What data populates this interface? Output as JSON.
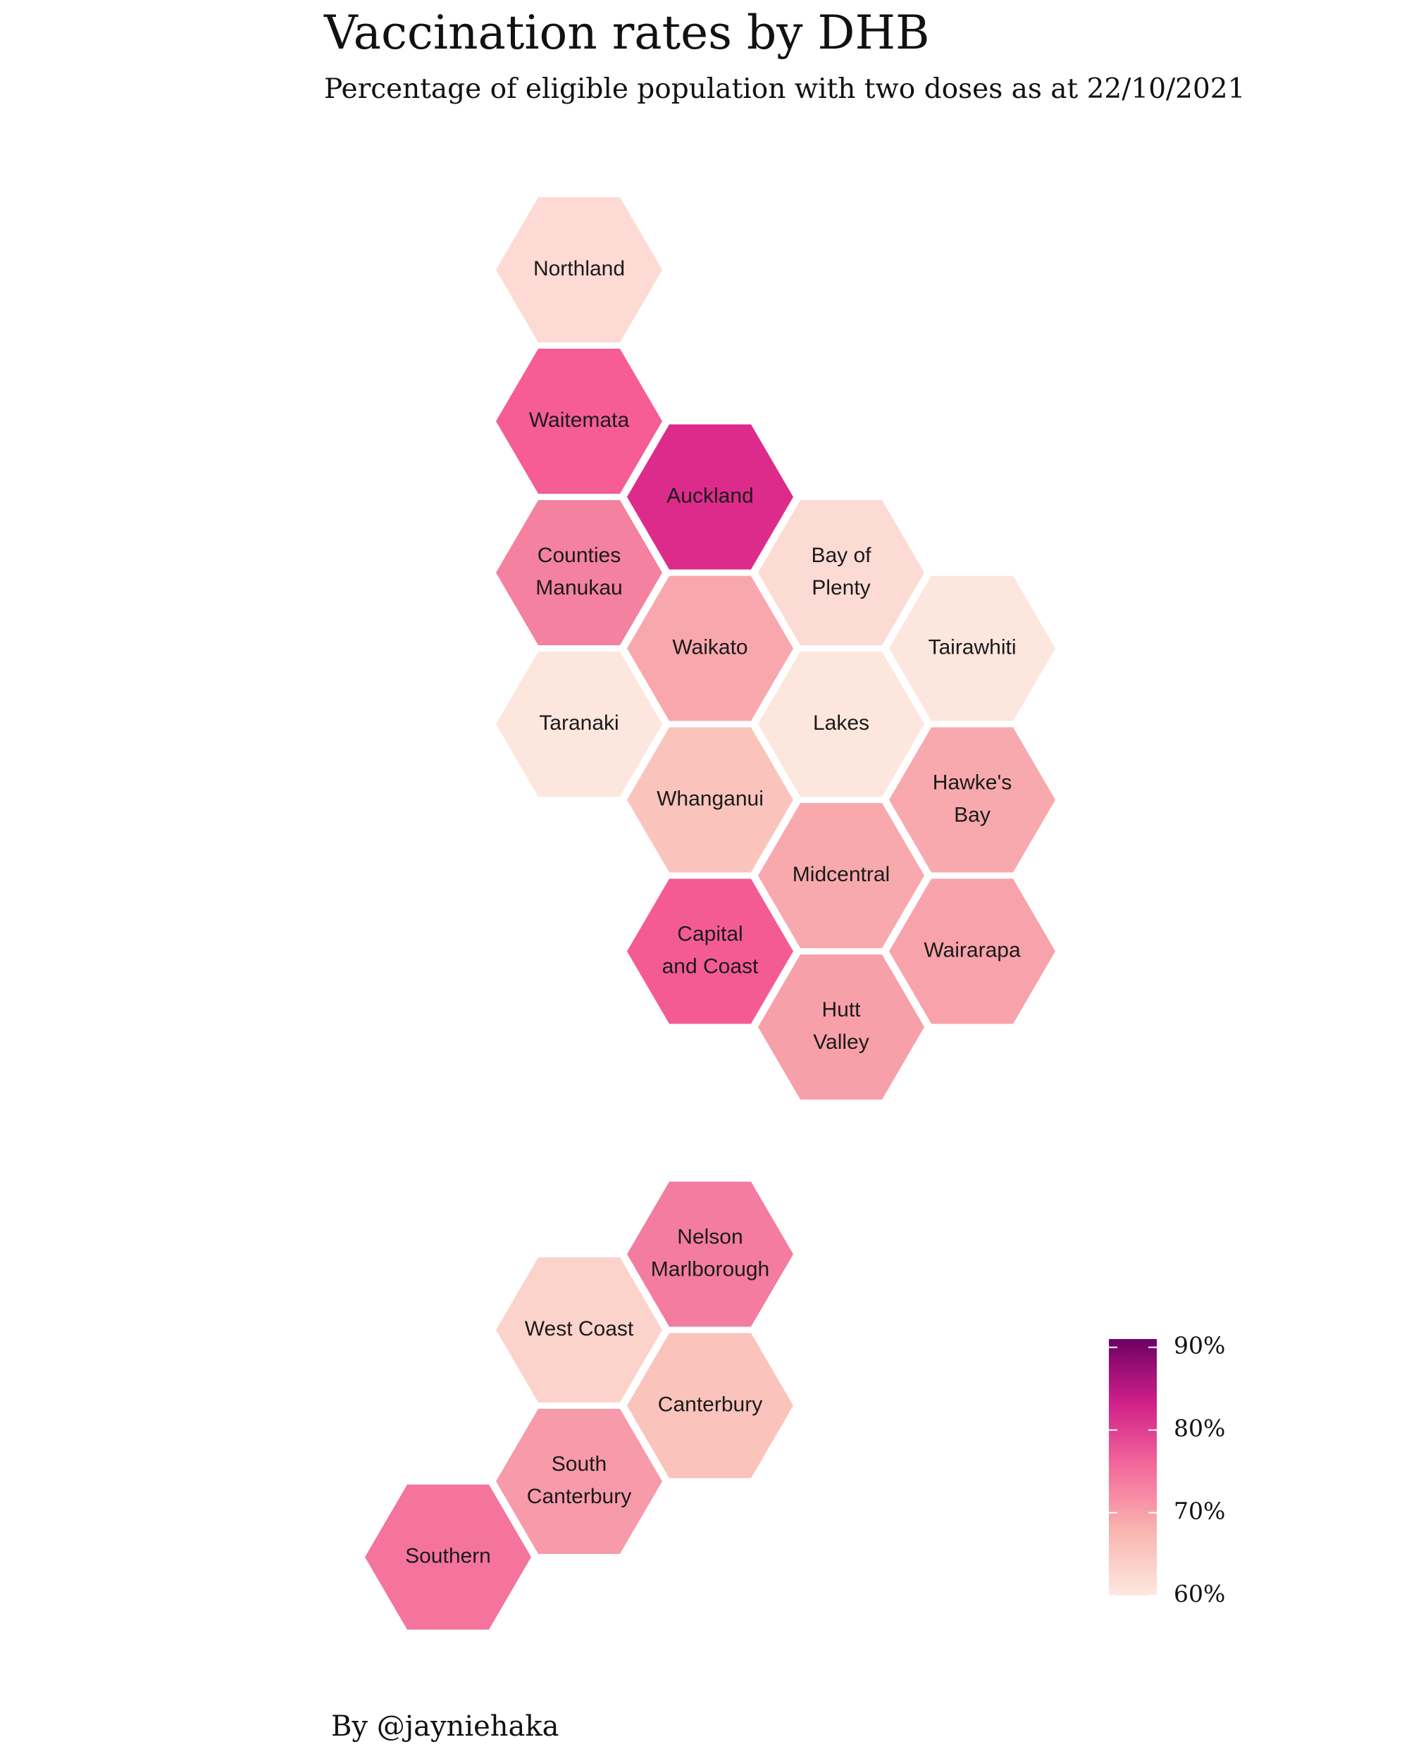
{
  "title": "Vaccination rates by DHB",
  "subtitle": "Percentage of eligible population with two doses as at 22/10/2021",
  "caption": "By @jayniehaka",
  "chart_data": {
    "type": "hex-tile-map",
    "value_unit": "%",
    "legend": {
      "position": "bottom-right",
      "ticks": [
        "90%",
        "80%",
        "70%",
        "60%"
      ],
      "tick_values": [
        90,
        80,
        70,
        60
      ],
      "range": [
        60,
        91
      ],
      "colors": [
        "#fde8e0",
        "#f9b5b0",
        "#f46a9b",
        "#d1208a",
        "#6e0064"
      ]
    },
    "regions": [
      {
        "id": "northland",
        "label": [
          "Northland"
        ],
        "col": 0,
        "row": 0,
        "value": 63,
        "color": "#fddad3"
      },
      {
        "id": "waitemata",
        "label": [
          "Waitemata"
        ],
        "col": 0,
        "row": 2,
        "value": 77,
        "color": "#f55d94"
      },
      {
        "id": "auckland",
        "label": [
          "Auckland"
        ],
        "col": 1,
        "row": 3,
        "value": 83,
        "color": "#dd2b8b"
      },
      {
        "id": "counties-manukau",
        "label": [
          "Counties",
          "Manukau"
        ],
        "col": 0,
        "row": 4,
        "value": 73,
        "color": "#f3819f"
      },
      {
        "id": "bay-of-plenty",
        "label": [
          "Bay of",
          "Plenty"
        ],
        "col": 2,
        "row": 4,
        "value": 63,
        "color": "#fcdbd4"
      },
      {
        "id": "waikato",
        "label": [
          "Waikato"
        ],
        "col": 1,
        "row": 5,
        "value": 69,
        "color": "#f8a8ad"
      },
      {
        "id": "tairawhiti",
        "label": [
          "Tairawhiti"
        ],
        "col": 3,
        "row": 5,
        "value": 61,
        "color": "#fde6dd"
      },
      {
        "id": "taranaki",
        "label": [
          "Taranaki"
        ],
        "col": 0,
        "row": 6,
        "value": 61,
        "color": "#fde6de"
      },
      {
        "id": "lakes",
        "label": [
          "Lakes"
        ],
        "col": 2,
        "row": 6,
        "value": 61,
        "color": "#fde6de"
      },
      {
        "id": "whanganui",
        "label": [
          "Whanganui"
        ],
        "col": 1,
        "row": 7,
        "value": 66,
        "color": "#fac4bc"
      },
      {
        "id": "hawkes-bay",
        "label": [
          "Hawke's",
          "Bay"
        ],
        "col": 3,
        "row": 7,
        "value": 69,
        "color": "#f8a9ad"
      },
      {
        "id": "midcentral",
        "label": [
          "Midcentral"
        ],
        "col": 2,
        "row": 8,
        "value": 69,
        "color": "#f8a9ad"
      },
      {
        "id": "capital-and-coast",
        "label": [
          "Capital",
          "and Coast"
        ],
        "col": 1,
        "row": 9,
        "value": 77,
        "color": "#f55b93"
      },
      {
        "id": "wairarapa",
        "label": [
          "Wairarapa"
        ],
        "col": 3,
        "row": 9,
        "value": 69,
        "color": "#f8a3ab"
      },
      {
        "id": "hutt-valley",
        "label": [
          "Hutt",
          "Valley"
        ],
        "col": 2,
        "row": 10,
        "value": 70,
        "color": "#f8a0aa"
      },
      {
        "id": "nelson-marlborough",
        "label": [
          "Nelson",
          "Marlborough"
        ],
        "col": 1,
        "row": 13,
        "value": 74,
        "color": "#f47ca0"
      },
      {
        "id": "west-coast",
        "label": [
          "West Coast"
        ],
        "col": 0,
        "row": 14,
        "value": 64,
        "color": "#fcd3cb"
      },
      {
        "id": "canterbury",
        "label": [
          "Canterbury"
        ],
        "col": 1,
        "row": 15,
        "value": 66,
        "color": "#fac3bb"
      },
      {
        "id": "south-canterbury",
        "label": [
          "South",
          "Canterbury"
        ],
        "col": 0,
        "row": 16,
        "value": 70,
        "color": "#f79aa9"
      },
      {
        "id": "southern",
        "label": [
          "Southern"
        ],
        "col": -1,
        "row": 17,
        "value": 75,
        "color": "#f4749e"
      }
    ]
  }
}
